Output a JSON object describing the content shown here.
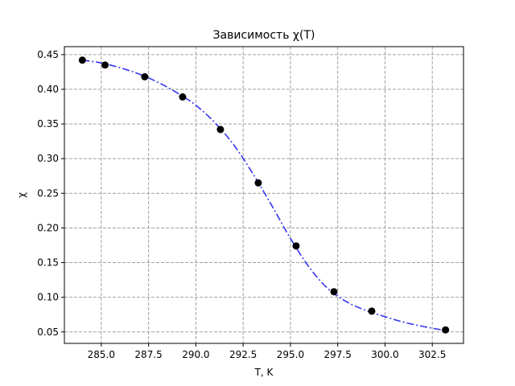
{
  "chart_data": {
    "type": "scatter",
    "title": "Зависимость χ(T)",
    "xlabel": "T, K",
    "ylabel": "χ",
    "xlim": [
      283.05,
      304.15
    ],
    "ylim": [
      0.0335,
      0.4615
    ],
    "x_ticks": [
      285.0,
      287.5,
      290.0,
      292.5,
      295.0,
      297.5,
      300.0,
      302.5
    ],
    "x_tick_labels": [
      "285.0",
      "287.5",
      "290.0",
      "292.5",
      "295.0",
      "297.5",
      "300.0",
      "302.5"
    ],
    "y_ticks": [
      0.05,
      0.1,
      0.15,
      0.2,
      0.25,
      0.3,
      0.35,
      0.4,
      0.45
    ],
    "y_tick_labels": [
      "0.05",
      "0.10",
      "0.15",
      "0.20",
      "0.25",
      "0.30",
      "0.35",
      "0.40",
      "0.45"
    ],
    "grid": true,
    "legend": "none",
    "series": [
      {
        "kind": "points",
        "color": "#000000",
        "x": [
          284.0,
          285.2,
          287.3,
          289.3,
          291.3,
          293.3,
          295.3,
          297.3,
          299.3,
          303.2
        ],
        "y": [
          0.442,
          0.435,
          0.418,
          0.389,
          0.342,
          0.265,
          0.174,
          0.108,
          0.08,
          0.053
        ]
      },
      {
        "kind": "fit-curve",
        "color": "#3333ee",
        "line_style": "dash-dot",
        "x": [
          284.0,
          285.0,
          286.0,
          287.0,
          288.0,
          289.0,
          290.0,
          291.0,
          292.0,
          293.0,
          294.0,
          295.0,
          296.0,
          297.0,
          298.0,
          299.0,
          300.0,
          301.0,
          302.0,
          303.2
        ],
        "y": [
          0.442,
          0.438,
          0.431,
          0.422,
          0.41,
          0.395,
          0.377,
          0.352,
          0.32,
          0.279,
          0.233,
          0.185,
          0.143,
          0.112,
          0.093,
          0.081,
          0.072,
          0.064,
          0.058,
          0.052
        ]
      }
    ]
  }
}
